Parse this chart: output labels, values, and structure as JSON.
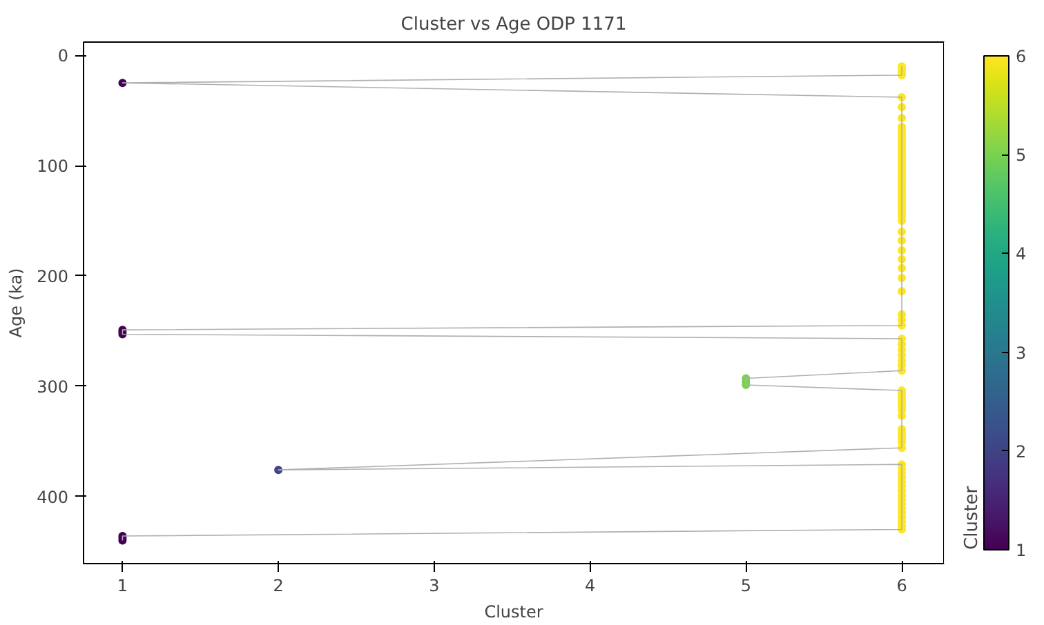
{
  "chart_data": {
    "type": "scatter",
    "title": "Cluster vs Age ODP 1171",
    "xlabel": "Cluster",
    "ylabel": "Age (ka)",
    "clabel": "Cluster",
    "xlim": [
      0.75,
      6.27
    ],
    "xticks": [
      1,
      2,
      3,
      4,
      5,
      6
    ],
    "ylim": [
      461,
      -12
    ],
    "yticks": [
      0,
      100,
      200,
      300,
      400
    ],
    "clim": [
      1,
      6
    ],
    "cticks": [
      1,
      2,
      3,
      4,
      5,
      6
    ],
    "grid": false,
    "marker": "circle",
    "series": [
      {
        "x": [
          6,
          6,
          6,
          6,
          6,
          1,
          6,
          6,
          6,
          6,
          6,
          6,
          6,
          6,
          6,
          6,
          6,
          6,
          6,
          6,
          6,
          6,
          6,
          6,
          6,
          6,
          6,
          6,
          6,
          6,
          6,
          6,
          6,
          6,
          6,
          6,
          6,
          6,
          6,
          6,
          6,
          6,
          6,
          6,
          6,
          6,
          6,
          6,
          1,
          1,
          1,
          6,
          6,
          6,
          6,
          6,
          6,
          6,
          5,
          5,
          5,
          6,
          6,
          6,
          6,
          6,
          6,
          6,
          6,
          6,
          6,
          6,
          6,
          6,
          6,
          2,
          6,
          6,
          6,
          6,
          6,
          6,
          6,
          6,
          6,
          6,
          6,
          6,
          6,
          6,
          6,
          6,
          1,
          1,
          1
        ],
        "values": [
          10,
          12,
          14,
          16,
          18,
          25,
          38,
          47,
          57,
          65,
          68,
          71,
          74,
          77,
          80,
          83,
          86,
          89,
          92,
          95,
          98,
          101,
          104,
          107,
          110,
          113,
          116,
          119,
          122,
          125,
          128,
          131,
          134,
          137,
          140,
          143,
          146,
          150,
          160,
          168,
          177,
          185,
          193,
          202,
          214,
          235,
          240,
          245,
          249,
          251,
          253,
          257,
          262,
          267,
          272,
          277,
          281,
          286,
          293,
          296,
          299,
          304,
          307,
          310,
          313,
          316,
          319,
          322,
          327,
          339,
          342,
          345,
          348,
          351,
          356,
          376,
          371,
          375,
          379,
          383,
          387,
          391,
          395,
          399,
          403,
          407,
          411,
          415,
          419,
          423,
          427,
          430,
          436,
          438,
          440
        ],
        "colors": [
          "#fde725",
          "#fde725",
          "#fde725",
          "#fde725",
          "#fde725",
          "#440154",
          "#fde725",
          "#fde725",
          "#fde725",
          "#fde725",
          "#fde725",
          "#fde725",
          "#fde725",
          "#fde725",
          "#fde725",
          "#fde725",
          "#fde725",
          "#fde725",
          "#fde725",
          "#fde725",
          "#fde725",
          "#fde725",
          "#fde725",
          "#fde725",
          "#fde725",
          "#fde725",
          "#fde725",
          "#fde725",
          "#fde725",
          "#fde725",
          "#fde725",
          "#fde725",
          "#fde725",
          "#fde725",
          "#fde725",
          "#fde725",
          "#fde725",
          "#fde725",
          "#fde725",
          "#fde725",
          "#fde725",
          "#fde725",
          "#fde725",
          "#fde725",
          "#fde725",
          "#fde725",
          "#fde725",
          "#fde725",
          "#440154",
          "#440154",
          "#440154",
          "#fde725",
          "#fde725",
          "#fde725",
          "#fde725",
          "#fde725",
          "#fde725",
          "#fde725",
          "#7ad151",
          "#7ad151",
          "#7ad151",
          "#fde725",
          "#fde725",
          "#fde725",
          "#fde725",
          "#fde725",
          "#fde725",
          "#fde725",
          "#fde725",
          "#fde725",
          "#fde725",
          "#fde725",
          "#fde725",
          "#fde725",
          "#fde725",
          "#414487",
          "#fde725",
          "#fde725",
          "#fde725",
          "#fde725",
          "#fde725",
          "#fde725",
          "#fde725",
          "#fde725",
          "#fde725",
          "#fde725",
          "#fde725",
          "#fde725",
          "#fde725",
          "#fde725",
          "#fde725",
          "#fde725",
          "#440154",
          "#440154",
          "#440154"
        ]
      },
      {
        "type": "line",
        "marker": "none",
        "color": "#b0b0b0",
        "x": [
          6,
          6,
          6,
          6,
          6,
          1,
          6,
          6,
          6,
          6,
          6,
          6,
          6,
          6,
          6,
          6,
          6,
          6,
          6,
          6,
          6,
          6,
          6,
          6,
          6,
          6,
          6,
          6,
          6,
          6,
          6,
          6,
          6,
          6,
          6,
          6,
          6,
          6,
          6,
          6,
          6,
          6,
          6,
          6,
          6,
          6,
          6,
          6,
          1,
          1,
          1,
          6,
          6,
          6,
          6,
          6,
          6,
          6,
          5,
          5,
          5,
          6,
          6,
          6,
          6,
          6,
          6,
          6,
          6,
          6,
          6,
          6,
          6,
          6,
          6,
          2,
          6,
          6,
          6,
          6,
          6,
          6,
          6,
          6,
          6,
          6,
          6,
          6,
          6,
          6,
          6,
          6,
          1,
          1,
          1
        ],
        "values": [
          10,
          12,
          14,
          16,
          18,
          25,
          38,
          47,
          57,
          65,
          68,
          71,
          74,
          77,
          80,
          83,
          86,
          89,
          92,
          95,
          98,
          101,
          104,
          107,
          110,
          113,
          116,
          119,
          122,
          125,
          128,
          131,
          134,
          137,
          140,
          143,
          146,
          150,
          160,
          168,
          177,
          185,
          193,
          202,
          214,
          235,
          240,
          245,
          249,
          251,
          253,
          257,
          262,
          267,
          272,
          277,
          281,
          286,
          293,
          296,
          299,
          304,
          307,
          310,
          313,
          316,
          319,
          322,
          327,
          339,
          342,
          345,
          348,
          351,
          356,
          376,
          371,
          375,
          379,
          383,
          387,
          391,
          395,
          399,
          403,
          407,
          411,
          415,
          419,
          423,
          427,
          430,
          436,
          438,
          440
        ]
      }
    ]
  }
}
